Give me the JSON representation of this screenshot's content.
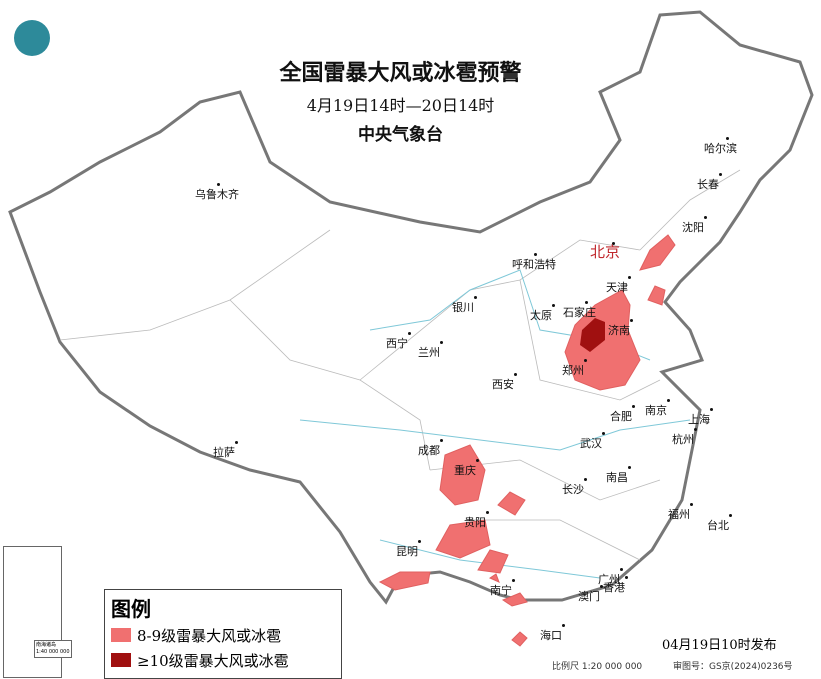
{
  "header": {
    "title": "全国雷暴大风或冰雹预警",
    "period": "4月19日14时—20日14时",
    "issuer": "中央气象台",
    "logo_icon": "cma-logo"
  },
  "cities": [
    {
      "name": "乌鲁木齐",
      "capital": false
    },
    {
      "name": "哈尔滨"
    },
    {
      "name": "长春"
    },
    {
      "name": "沈阳"
    },
    {
      "name": "北京",
      "capital": true
    },
    {
      "name": "呼和浩特"
    },
    {
      "name": "天津"
    },
    {
      "name": "石家庄"
    },
    {
      "name": "太原"
    },
    {
      "name": "济南"
    },
    {
      "name": "银川"
    },
    {
      "name": "西宁"
    },
    {
      "name": "兰州"
    },
    {
      "name": "郑州"
    },
    {
      "name": "西安"
    },
    {
      "name": "合肥"
    },
    {
      "name": "南京"
    },
    {
      "name": "上海"
    },
    {
      "name": "杭州"
    },
    {
      "name": "武汉"
    },
    {
      "name": "成都"
    },
    {
      "name": "重庆"
    },
    {
      "name": "拉萨"
    },
    {
      "name": "长沙"
    },
    {
      "name": "南昌"
    },
    {
      "name": "福州"
    },
    {
      "name": "台北"
    },
    {
      "name": "贵阳"
    },
    {
      "name": "昆明"
    },
    {
      "name": "南宁"
    },
    {
      "name": "广州"
    },
    {
      "name": "澳门"
    },
    {
      "name": "香港"
    },
    {
      "name": "海口"
    }
  ],
  "legend": {
    "title": "图例",
    "items": [
      {
        "label": "8-9级雷暴大风或冰雹",
        "color": "#f07070"
      },
      {
        "label": "≥10级雷暴大风或冰雹",
        "color": "#a01010"
      }
    ]
  },
  "footer": {
    "issued": "04月19日10时发布",
    "scale": "比例尺 1:20 000 000",
    "approval": "审图号：GS京(2024)0236号",
    "inset_label": "南海诸岛",
    "inset_scale": "1:40 000 000"
  },
  "colors": {
    "capital": "#c0282d",
    "border": "#777777",
    "river": "#7fc8d8"
  }
}
